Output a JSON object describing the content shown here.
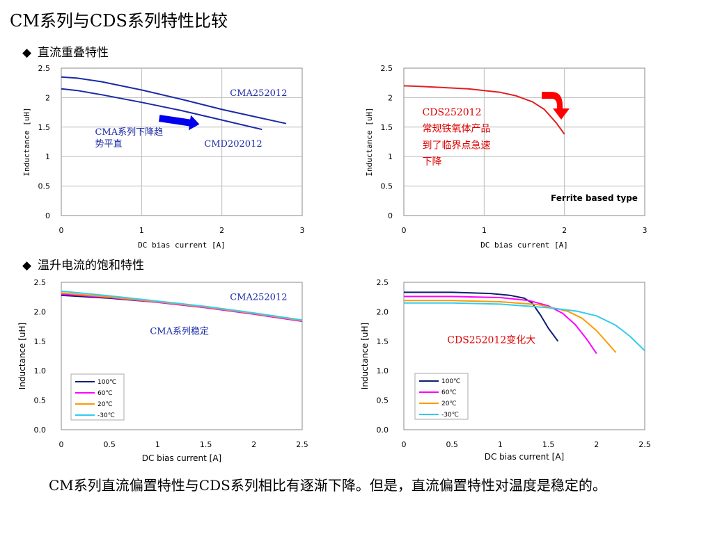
{
  "slide": {
    "title": "CM系列与CDS系列特性比较",
    "section1": "直流重叠特性",
    "section2": "温升电流的饱和特性",
    "bullet": "◆",
    "note": "CM系列直流偏置特性与CDS系列相比有逐渐下降。但是，直流偏置特性对温度是稳定的。"
  },
  "chart_data": [
    {
      "type": "line",
      "xlabel": "DC bias current [A]",
      "ylabel": "Inductance [uH]",
      "xlim": [
        0,
        3
      ],
      "ylim": [
        0,
        2.5
      ],
      "xticks": [
        "0",
        "1",
        "2",
        "3"
      ],
      "yticks": [
        "0",
        "0.5",
        "1",
        "1.5",
        "2",
        "2.5"
      ],
      "grid": true,
      "series": [
        {
          "name": "CMA252012",
          "color": "#1a2aa8",
          "x": [
            0,
            0.2,
            0.5,
            1.0,
            1.5,
            2.0,
            2.5,
            2.8
          ],
          "y": [
            2.35,
            2.33,
            2.27,
            2.13,
            1.97,
            1.8,
            1.65,
            1.56
          ]
        },
        {
          "name": "CMD202012",
          "color": "#1a2aa8",
          "x": [
            0,
            0.2,
            0.5,
            1.0,
            1.5,
            2.0,
            2.5
          ],
          "y": [
            2.15,
            2.12,
            2.05,
            1.92,
            1.78,
            1.62,
            1.46
          ]
        }
      ],
      "annotations": [
        {
          "text": "CMA252012",
          "x": 2.1,
          "y": 2.03,
          "style": "blue"
        },
        {
          "text": "CMD202012",
          "x": 1.78,
          "y": 1.17,
          "style": "blue"
        },
        {
          "text": "CMA系列下降趋",
          "x": 0.42,
          "y": 1.37,
          "style": "blue"
        },
        {
          "text": "势平直",
          "x": 0.42,
          "y": 1.17,
          "style": "blue"
        }
      ],
      "arrow": {
        "color": "#0000ee",
        "from": [
          1.22,
          1.65
        ],
        "to": [
          1.72,
          1.55
        ]
      }
    },
    {
      "type": "line",
      "xlabel": "DC bias current [A]",
      "ylabel": "Inductance [uH]",
      "xlim": [
        0,
        3
      ],
      "ylim": [
        0,
        2.5
      ],
      "xticks": [
        "0",
        "1",
        "2",
        "3"
      ],
      "yticks": [
        "0",
        "0.5",
        "1",
        "1.5",
        "2",
        "2.5"
      ],
      "grid": true,
      "series": [
        {
          "name": "CDS252012",
          "color": "#e02020",
          "x": [
            0,
            0.2,
            0.5,
            0.8,
            1.0,
            1.2,
            1.4,
            1.6,
            1.75,
            1.9,
            2.0
          ],
          "y": [
            2.2,
            2.19,
            2.17,
            2.15,
            2.12,
            2.09,
            2.03,
            1.93,
            1.8,
            1.57,
            1.38
          ]
        }
      ],
      "annotations": [
        {
          "text": "CDS252012",
          "x": 0.23,
          "y": 1.7,
          "style": "red"
        },
        {
          "text": "常规铁氧体产品",
          "x": 0.23,
          "y": 1.42,
          "style": "red"
        },
        {
          "text": "到了临界点急速",
          "x": 0.23,
          "y": 1.14,
          "style": "red"
        },
        {
          "text": "下降",
          "x": 0.23,
          "y": 0.86,
          "style": "red"
        },
        {
          "text": "Ferrite based type",
          "x": 1.83,
          "y": 0.25,
          "style": "black"
        }
      ],
      "bent_arrow": {
        "color": "#ff0000"
      }
    },
    {
      "type": "line",
      "xlabel": "DC bias current [A]",
      "ylabel": "Inductance [uH]",
      "xlim": [
        0,
        2.5
      ],
      "ylim": [
        0,
        2.5
      ],
      "xticks": [
        "0",
        "0.5",
        "1",
        "1.5",
        "2",
        "2.5"
      ],
      "yticks": [
        "0.0",
        "0.5",
        "1.0",
        "1.5",
        "2.0",
        "2.5"
      ],
      "grid": false,
      "legend": "bottom-left",
      "series": [
        {
          "name": "100℃",
          "color": "#0d1e6e",
          "x": [
            0,
            0.5,
            1.0,
            1.5,
            2.0,
            2.5
          ],
          "y": [
            2.28,
            2.23,
            2.16,
            2.07,
            1.96,
            1.84
          ]
        },
        {
          "name": "60℃",
          "color": "#ff00ff",
          "x": [
            0,
            0.5,
            1.0,
            1.5,
            2.0,
            2.5
          ],
          "y": [
            2.3,
            2.24,
            2.16,
            2.07,
            1.96,
            1.84
          ]
        },
        {
          "name": "20℃",
          "color": "#ff9900",
          "x": [
            0,
            0.5,
            1.0,
            1.5,
            2.0,
            2.5
          ],
          "y": [
            2.32,
            2.25,
            2.17,
            2.08,
            1.97,
            1.85
          ]
        },
        {
          "name": "-30℃",
          "color": "#33ccee",
          "x": [
            0,
            0.5,
            1.0,
            1.5,
            2.0,
            2.5
          ],
          "y": [
            2.35,
            2.27,
            2.18,
            2.09,
            1.98,
            1.86
          ]
        }
      ],
      "annotations": [
        {
          "text": "CMA252012",
          "x": 1.75,
          "y": 2.2,
          "style": "blue"
        },
        {
          "text": "CMA系列稳定",
          "x": 0.92,
          "y": 1.62,
          "style": "blue"
        }
      ]
    },
    {
      "type": "line",
      "xlabel": "DC bias current [A]",
      "ylabel": "Inductance [uH]",
      "xlim": [
        0,
        2.5
      ],
      "ylim": [
        0,
        2.5
      ],
      "xticks": [
        "0",
        "0.5",
        "1",
        "1.5",
        "2",
        "2.5"
      ],
      "yticks": [
        "0.0",
        "0.5",
        "1.0",
        "1.5",
        "2.0",
        "2.5"
      ],
      "grid": false,
      "legend": "bottom-left",
      "series": [
        {
          "name": "100℃",
          "color": "#0d1e6e",
          "x": [
            0,
            0.5,
            0.9,
            1.1,
            1.25,
            1.33,
            1.42,
            1.5,
            1.6
          ],
          "y": [
            2.33,
            2.33,
            2.31,
            2.28,
            2.23,
            2.15,
            1.94,
            1.72,
            1.5
          ]
        },
        {
          "name": "60℃",
          "color": "#ff00ff",
          "x": [
            0,
            0.5,
            1.0,
            1.3,
            1.5,
            1.65,
            1.78,
            1.9,
            2.0
          ],
          "y": [
            2.26,
            2.26,
            2.24,
            2.19,
            2.1,
            1.97,
            1.78,
            1.53,
            1.29
          ]
        },
        {
          "name": "20℃",
          "color": "#ff9900",
          "x": [
            0,
            0.5,
            1.0,
            1.4,
            1.7,
            1.85,
            2.0,
            2.2
          ],
          "y": [
            2.19,
            2.19,
            2.17,
            2.12,
            2.01,
            1.89,
            1.68,
            1.31
          ]
        },
        {
          "name": "-30℃",
          "color": "#33ccee",
          "x": [
            0,
            0.5,
            1.0,
            1.5,
            1.8,
            2.0,
            2.2,
            2.35,
            2.5
          ],
          "y": [
            2.15,
            2.15,
            2.13,
            2.07,
            2.01,
            1.93,
            1.77,
            1.58,
            1.34
          ]
        }
      ],
      "annotations": [
        {
          "text": "CDS252012变化大",
          "x": 0.45,
          "y": 1.47,
          "style": "red"
        }
      ]
    }
  ]
}
